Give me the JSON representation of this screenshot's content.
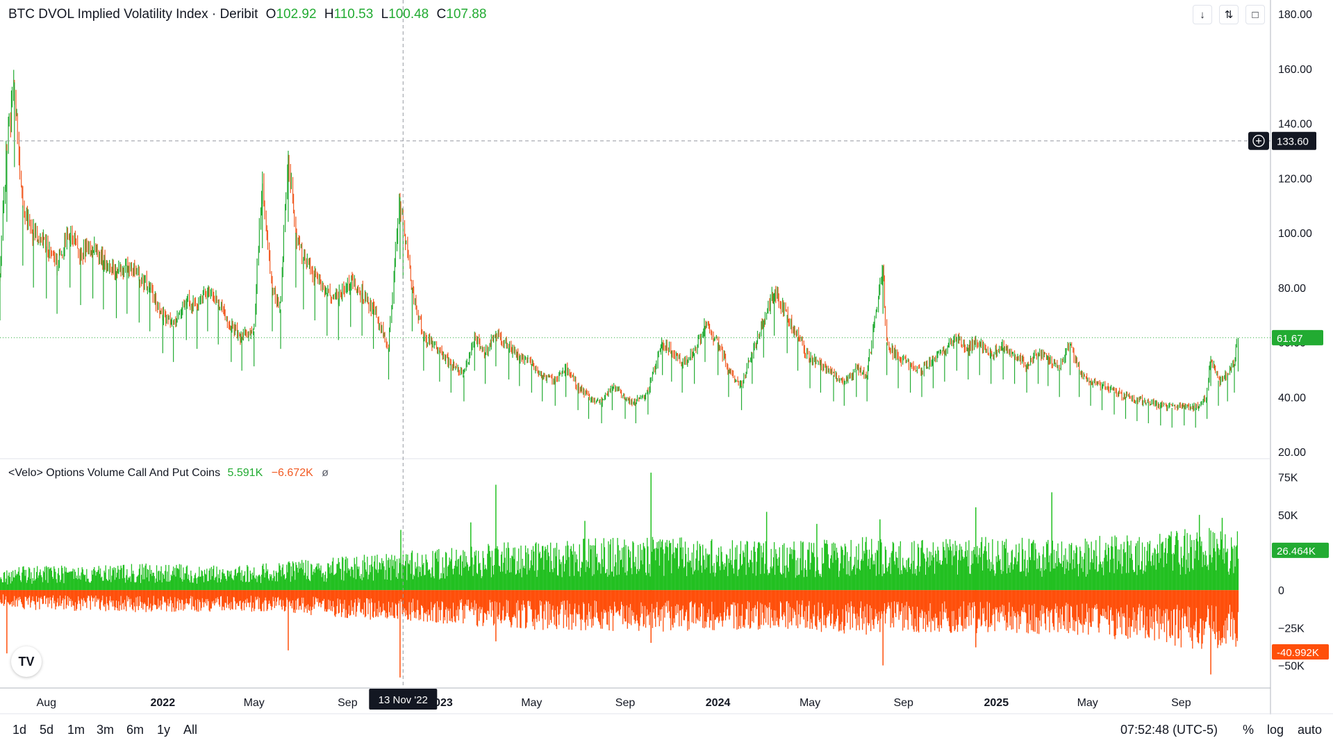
{
  "header": {
    "title": "BTC DVOL Implied Volatility Index · Deribit",
    "open_label": "O",
    "open_value": "102.92",
    "high_label": "H",
    "high_value": "110.53",
    "low_label": "L",
    "low_value": "100.48",
    "close_label": "C",
    "close_value": "107.88"
  },
  "indicator": {
    "title": "<Velo> Options Volume Call And Put Coins",
    "call_value": "5.591K",
    "put_value": "−6.672K",
    "visibility_symbol": "ø"
  },
  "toolbar": {
    "icons": [
      "arrow-down-icon",
      "collapse-icon",
      "maximize-icon"
    ]
  },
  "colors": {
    "up": "#22ab32",
    "down": "#f15a22",
    "call_volume": "#22c021",
    "put_volume": "#ff4f0a",
    "crosshair": "#9598a1",
    "label_bg_dark": "#131722"
  },
  "chart_data": [
    {
      "type": "line",
      "title": "BTC DVOL Implied Volatility Index · Deribit",
      "x_tick_labels": [
        "Aug",
        "2022",
        "May",
        "Sep",
        "2023",
        "May",
        "Sep",
        "2024",
        "May",
        "Sep",
        "2025",
        "May",
        "Sep"
      ],
      "y_tick_labels": [
        "180.00",
        "160.00",
        "140.00",
        "120.00",
        "100.00",
        "80.00",
        "60.00",
        "40.00",
        "20.00"
      ],
      "ylim": [
        20,
        180
      ],
      "x_range": [
        "2021-06",
        "2025-11"
      ],
      "points": [
        [
          "2021-06-01",
          85
        ],
        [
          "2021-06-10",
          130
        ],
        [
          "2021-06-20",
          155
        ],
        [
          "2021-07-01",
          110
        ],
        [
          "2021-07-15",
          100
        ],
        [
          "2021-08-01",
          95
        ],
        [
          "2021-08-15",
          88
        ],
        [
          "2021-09-01",
          100
        ],
        [
          "2021-09-15",
          92
        ],
        [
          "2021-10-01",
          95
        ],
        [
          "2021-10-15",
          90
        ],
        [
          "2021-11-01",
          86
        ],
        [
          "2021-11-15",
          88
        ],
        [
          "2021-12-01",
          84
        ],
        [
          "2021-12-15",
          80
        ],
        [
          "2022-01-01",
          70
        ],
        [
          "2022-01-15",
          66
        ],
        [
          "2022-02-01",
          76
        ],
        [
          "2022-02-15",
          72
        ],
        [
          "2022-03-01",
          80
        ],
        [
          "2022-03-15",
          74
        ],
        [
          "2022-04-01",
          66
        ],
        [
          "2022-04-15",
          62
        ],
        [
          "2022-05-01",
          64
        ],
        [
          "2022-05-12",
          118
        ],
        [
          "2022-05-25",
          80
        ],
        [
          "2022-06-05",
          72
        ],
        [
          "2022-06-15",
          130
        ],
        [
          "2022-06-25",
          100
        ],
        [
          "2022-07-05",
          90
        ],
        [
          "2022-07-20",
          85
        ],
        [
          "2022-08-05",
          78
        ],
        [
          "2022-08-20",
          76
        ],
        [
          "2022-09-05",
          82
        ],
        [
          "2022-09-20",
          78
        ],
        [
          "2022-10-05",
          72
        ],
        [
          "2022-10-25",
          58
        ],
        [
          "2022-11-09",
          113
        ],
        [
          "2022-11-13",
          104
        ],
        [
          "2022-11-25",
          80
        ],
        [
          "2022-12-10",
          62
        ],
        [
          "2022-12-31",
          57
        ],
        [
          "2023-01-15",
          52
        ],
        [
          "2023-02-01",
          48
        ],
        [
          "2023-02-15",
          62
        ],
        [
          "2023-03-01",
          56
        ],
        [
          "2023-03-15",
          64
        ],
        [
          "2023-04-01",
          58
        ],
        [
          "2023-04-15",
          55
        ],
        [
          "2023-05-01",
          52
        ],
        [
          "2023-05-15",
          48
        ],
        [
          "2023-06-01",
          46
        ],
        [
          "2023-06-15",
          50
        ],
        [
          "2023-07-01",
          44
        ],
        [
          "2023-07-15",
          40
        ],
        [
          "2023-08-01",
          38
        ],
        [
          "2023-08-15",
          44
        ],
        [
          "2023-09-01",
          40
        ],
        [
          "2023-09-15",
          38
        ],
        [
          "2023-10-01",
          42
        ],
        [
          "2023-10-20",
          60
        ],
        [
          "2023-11-01",
          57
        ],
        [
          "2023-11-15",
          52
        ],
        [
          "2023-12-01",
          56
        ],
        [
          "2023-12-15",
          66
        ],
        [
          "2024-01-01",
          60
        ],
        [
          "2024-01-15",
          50
        ],
        [
          "2024-02-01",
          44
        ],
        [
          "2024-02-15",
          56
        ],
        [
          "2024-03-01",
          68
        ],
        [
          "2024-03-15",
          78
        ],
        [
          "2024-04-01",
          70
        ],
        [
          "2024-04-15",
          62
        ],
        [
          "2024-05-01",
          54
        ],
        [
          "2024-05-15",
          52
        ],
        [
          "2024-06-01",
          48
        ],
        [
          "2024-06-15",
          46
        ],
        [
          "2024-07-01",
          50
        ],
        [
          "2024-07-15",
          48
        ],
        [
          "2024-08-05",
          88
        ],
        [
          "2024-08-10",
          60
        ],
        [
          "2024-08-25",
          54
        ],
        [
          "2024-09-10",
          52
        ],
        [
          "2024-09-25",
          50
        ],
        [
          "2024-10-10",
          54
        ],
        [
          "2024-10-25",
          57
        ],
        [
          "2024-11-10",
          62
        ],
        [
          "2024-11-25",
          58
        ],
        [
          "2024-12-10",
          60
        ],
        [
          "2024-12-25",
          56
        ],
        [
          "2025-01-10",
          58
        ],
        [
          "2025-01-25",
          56
        ],
        [
          "2025-02-10",
          52
        ],
        [
          "2025-02-25",
          56
        ],
        [
          "2025-03-10",
          55
        ],
        [
          "2025-03-25",
          50
        ],
        [
          "2025-04-08",
          60
        ],
        [
          "2025-04-20",
          50
        ],
        [
          "2025-05-05",
          46
        ],
        [
          "2025-05-20",
          44
        ],
        [
          "2025-06-05",
          42
        ],
        [
          "2025-06-20",
          40
        ],
        [
          "2025-07-05",
          39
        ],
        [
          "2025-07-20",
          38
        ],
        [
          "2025-08-05",
          37
        ],
        [
          "2025-08-20",
          36
        ],
        [
          "2025-09-05",
          37
        ],
        [
          "2025-09-20",
          36
        ],
        [
          "2025-10-05",
          40
        ],
        [
          "2025-10-10",
          55
        ],
        [
          "2025-10-20",
          46
        ],
        [
          "2025-11-01",
          48
        ],
        [
          "2025-11-10",
          52
        ],
        [
          "2025-11-15",
          61.67
        ]
      ],
      "crosshair": {
        "x": "2022-11-13",
        "x_label": "13 Nov '22",
        "y": 133.6,
        "y_label": "133.60"
      },
      "last_price": {
        "value": 61.67,
        "label": "61.67"
      },
      "grid": false
    },
    {
      "type": "bar",
      "title": "<Velo> Options Volume Call And Put Coins",
      "y_tick_labels": [
        "75K",
        "50K",
        "0",
        "−25K",
        "−50K"
      ],
      "y_tick_values": [
        75000,
        50000,
        0,
        -25000,
        -50000
      ],
      "ylim": [
        -65000,
        85000
      ],
      "series": [
        {
          "name": "Call",
          "envelope": [
            [
              "2021-06-01",
              12000
            ],
            [
              "2021-07-01",
              16000
            ],
            [
              "2021-10-01",
              17000
            ],
            [
              "2022-01-01",
              18000
            ],
            [
              "2022-04-01",
              16000
            ],
            [
              "2022-07-01",
              20000
            ],
            [
              "2022-10-01",
              24000
            ],
            [
              "2023-01-01",
              28000
            ],
            [
              "2023-04-01",
              32000
            ],
            [
              "2023-07-01",
              34000
            ],
            [
              "2023-10-01",
              36000
            ],
            [
              "2024-01-01",
              34000
            ],
            [
              "2024-04-01",
              32000
            ],
            [
              "2024-07-01",
              36000
            ],
            [
              "2024-10-01",
              34000
            ],
            [
              "2025-01-01",
              36000
            ],
            [
              "2025-04-01",
              34000
            ],
            [
              "2025-07-01",
              38000
            ],
            [
              "2025-10-01",
              42000
            ],
            [
              "2025-11-15",
              40000
            ]
          ],
          "spikes": [
            [
              "2022-11-10",
              40000
            ],
            [
              "2023-02-10",
              45000
            ],
            [
              "2023-03-15",
              70000
            ],
            [
              "2023-07-10",
              46000
            ],
            [
              "2023-10-05",
              78000
            ],
            [
              "2024-03-05",
              52000
            ],
            [
              "2024-05-10",
              44000
            ],
            [
              "2024-08-01",
              47000
            ],
            [
              "2024-12-05",
              55000
            ],
            [
              "2025-03-15",
              65000
            ],
            [
              "2025-09-25",
              50000
            ],
            [
              "2025-10-25",
              48000
            ]
          ],
          "last_label": "26.464K",
          "last_value": 26464
        },
        {
          "name": "Put",
          "envelope": [
            [
              "2021-06-01",
              -10000
            ],
            [
              "2021-07-01",
              -13000
            ],
            [
              "2021-10-01",
              -14000
            ],
            [
              "2022-01-01",
              -15000
            ],
            [
              "2022-04-01",
              -14000
            ],
            [
              "2022-07-01",
              -16000
            ],
            [
              "2022-10-01",
              -20000
            ],
            [
              "2023-01-01",
              -22000
            ],
            [
              "2023-04-01",
              -26000
            ],
            [
              "2023-07-01",
              -27000
            ],
            [
              "2023-10-01",
              -28000
            ],
            [
              "2024-01-01",
              -27000
            ],
            [
              "2024-04-01",
              -26000
            ],
            [
              "2024-07-01",
              -30000
            ],
            [
              "2024-10-01",
              -28000
            ],
            [
              "2025-01-01",
              -30000
            ],
            [
              "2025-04-01",
              -29000
            ],
            [
              "2025-07-01",
              -34000
            ],
            [
              "2025-10-01",
              -40000
            ],
            [
              "2025-11-15",
              -38000
            ]
          ],
          "spikes": [
            [
              "2021-06-10",
              -42000
            ],
            [
              "2022-06-15",
              -40000
            ],
            [
              "2022-11-09",
              -58000
            ],
            [
              "2023-03-15",
              -34000
            ],
            [
              "2023-10-05",
              -35000
            ],
            [
              "2024-08-05",
              -50000
            ],
            [
              "2024-12-05",
              -38000
            ],
            [
              "2025-10-10",
              -56000
            ]
          ],
          "last_label": "-40.992K",
          "last_value": -40992
        }
      ]
    }
  ],
  "bottom_bar": {
    "ranges": [
      "1d",
      "5d",
      "1m",
      "3m",
      "6m",
      "1y",
      "All"
    ],
    "clock": "07:52:48 (UTC-5)",
    "percent_label": "%",
    "log_label": "log",
    "auto_label": "auto"
  },
  "logo_text": "TV"
}
